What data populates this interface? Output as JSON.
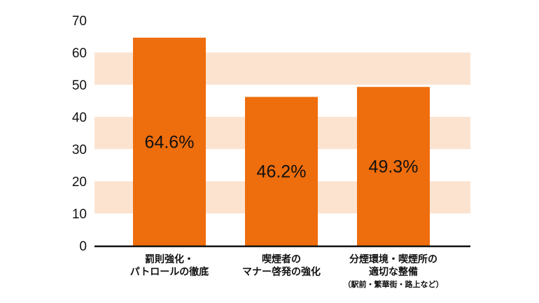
{
  "chart_data": {
    "type": "bar",
    "title": "",
    "xlabel": "",
    "ylabel": "",
    "ylim": [
      0,
      70
    ],
    "yticks": [
      0,
      10,
      20,
      30,
      40,
      50,
      60,
      70
    ],
    "grid": "alternating horizontal bands",
    "categories": [
      [
        "罰則強化・",
        "パトロールの徹底"
      ],
      [
        "喫煙者の",
        "マナー啓発の強化"
      ],
      [
        "分煙環境・喫煙所の",
        "適切な整備",
        "（駅前・繁華街・路上など）"
      ]
    ],
    "values": [
      64.6,
      46.2,
      49.3
    ],
    "data_labels": [
      "64.6%",
      "46.2%",
      "49.3%"
    ],
    "colors": {
      "bar": "#EE6D0C",
      "band": "#FBE3D0",
      "axis": "#111111"
    }
  }
}
